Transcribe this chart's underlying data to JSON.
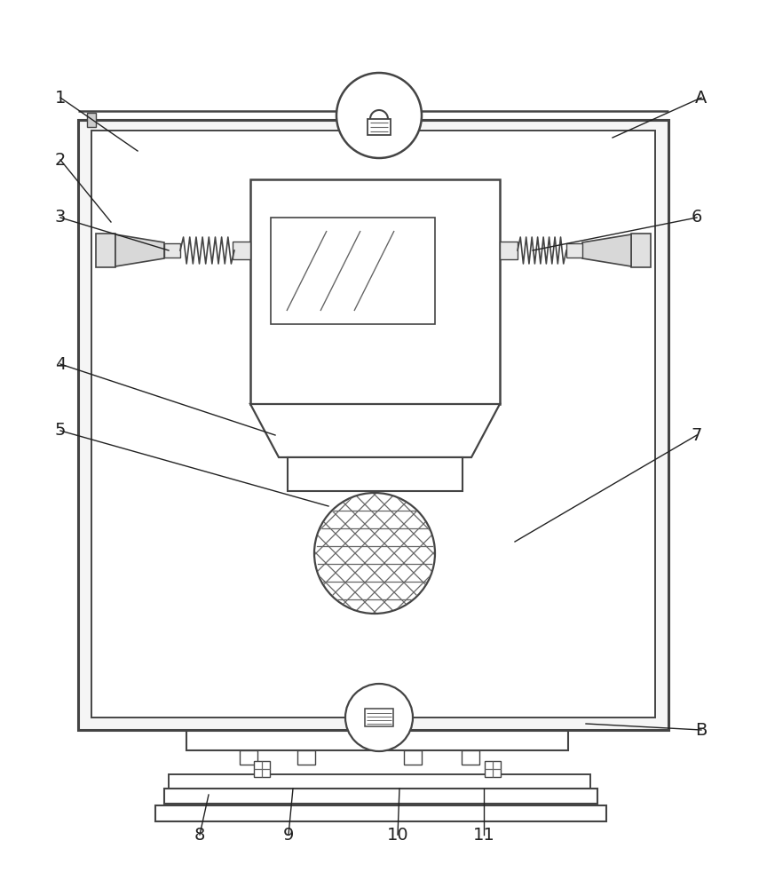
{
  "bg_color": "#ffffff",
  "line_color": "#444444",
  "figsize": [
    8.55,
    10.0
  ],
  "dpi": 100
}
